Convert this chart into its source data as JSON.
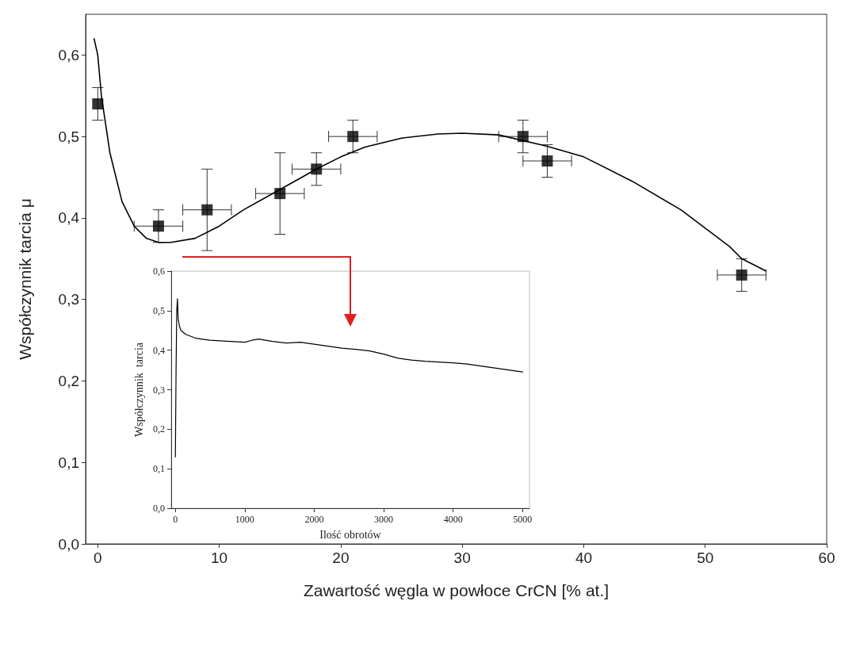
{
  "chart_data": [
    {
      "type": "scatter",
      "xlabel": "Zawartość węgla w powłoce CrCN [% at.]",
      "ylabel": "Współczynnik tarcia μ",
      "xlim": [
        -1,
        60
      ],
      "xticks": [
        0,
        10,
        20,
        30,
        40,
        50,
        60
      ],
      "ylim": [
        0,
        0.65
      ],
      "yticks": [
        {
          "value": 0,
          "label": "0,0"
        },
        {
          "value": 0.1,
          "label": "0,1"
        },
        {
          "value": 0.2,
          "label": "0,2"
        },
        {
          "value": 0.3,
          "label": "0,3"
        },
        {
          "value": 0.4,
          "label": "0,4"
        },
        {
          "value": 0.5,
          "label": "0,5"
        },
        {
          "value": 0.6,
          "label": "0,6"
        }
      ],
      "grid": false,
      "series": [
        {
          "marker": "square",
          "color": "#000000",
          "x": [
            0,
            5,
            9,
            15,
            18,
            21,
            35,
            37,
            53
          ],
          "values": [
            0.54,
            0.39,
            0.41,
            0.43,
            0.46,
            0.5,
            0.5,
            0.47,
            0.33
          ],
          "errors": [
            0.02,
            0.02,
            0.05,
            0.05,
            0.02,
            0.02,
            0.02,
            0.02,
            0.02
          ],
          "xerrors": [
            null,
            2,
            2,
            2,
            2,
            2,
            2,
            2,
            2
          ]
        },
        {
          "type": "line",
          "marker": "none",
          "line_style": "solid",
          "color": "#000000",
          "x": [
            -0.3,
            0,
            0.3,
            1,
            2,
            3,
            4,
            5,
            6,
            8,
            10,
            12,
            15,
            18,
            20,
            22,
            25,
            28,
            30,
            33,
            37,
            40,
            44,
            48,
            52,
            53,
            55
          ],
          "values": [
            0.62,
            0.6,
            0.55,
            0.48,
            0.42,
            0.39,
            0.375,
            0.37,
            0.37,
            0.375,
            0.39,
            0.41,
            0.435,
            0.46,
            0.475,
            0.487,
            0.498,
            0.503,
            0.504,
            0.502,
            0.488,
            0.475,
            0.445,
            0.41,
            0.365,
            0.35,
            0.335
          ]
        }
      ]
    },
    {
      "type": "line",
      "xlabel": "Ilość obrotów",
      "ylabel": "Współczynnik  tarcia",
      "xlim": [
        -60,
        5100
      ],
      "xticks": [
        0,
        1000,
        2000,
        3000,
        4000,
        5000
      ],
      "ylim": [
        0,
        0.6
      ],
      "yticks": [
        {
          "value": 0,
          "label": "0,0"
        },
        {
          "value": 0.1,
          "label": "0,1"
        },
        {
          "value": 0.2,
          "label": "0,2"
        },
        {
          "value": 0.3,
          "label": "0,3"
        },
        {
          "value": 0.4,
          "label": "0,4"
        },
        {
          "value": 0.5,
          "label": "0,5"
        },
        {
          "value": 0.6,
          "label": "0,6"
        }
      ],
      "grid": false,
      "marker": "none",
      "line_style": "solid",
      "color": "#000000",
      "x": [
        0,
        10,
        20,
        30,
        40,
        60,
        80,
        150,
        300,
        500,
        800,
        1000,
        1100,
        1200,
        1400,
        1600,
        1800,
        2000,
        2200,
        2400,
        2600,
        2800,
        3000,
        3200,
        3400,
        3600,
        3800,
        4000,
        4200,
        4400,
        4600,
        4800,
        5000
      ],
      "values": [
        0.13,
        0.35,
        0.5,
        0.53,
        0.48,
        0.46,
        0.45,
        0.44,
        0.43,
        0.425,
        0.422,
        0.42,
        0.425,
        0.428,
        0.422,
        0.418,
        0.42,
        0.415,
        0.41,
        0.405,
        0.402,
        0.398,
        0.39,
        0.38,
        0.375,
        0.372,
        0.37,
        0.368,
        0.365,
        0.36,
        0.355,
        0.35,
        0.345
      ]
    }
  ]
}
